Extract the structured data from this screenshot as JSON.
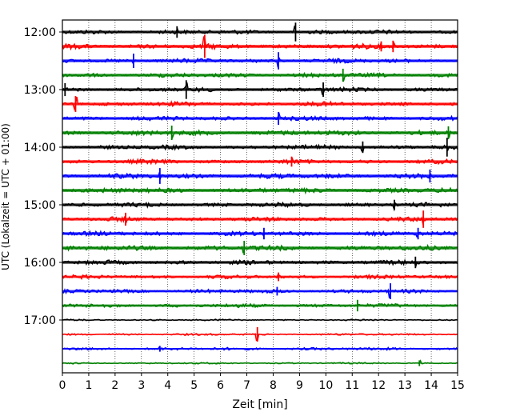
{
  "chart_data": {
    "type": "line",
    "title": "",
    "xlabel": "Zeit  [min]",
    "ylabel": "UTC (Lokalzeit = UTC + 01:00)",
    "xlim": [
      0,
      15
    ],
    "x_ticks": [
      0,
      1,
      2,
      3,
      4,
      5,
      6,
      7,
      8,
      9,
      10,
      11,
      12,
      13,
      14,
      15
    ],
    "y_ticks": [
      "12:00",
      "13:00",
      "14:00",
      "15:00",
      "16:00",
      "17:00"
    ],
    "grid": "vertical-dotted",
    "legend": "none",
    "colors": [
      "#000000",
      "#ff0000",
      "#0000ff",
      "#008000"
    ],
    "traces": [
      {
        "start": "12:00",
        "amplitude": 0.35,
        "spikes": [
          [
            4.35,
            0.8
          ],
          [
            8.85,
            1.3
          ]
        ]
      },
      {
        "start": "12:15",
        "amplitude": 0.4,
        "spikes": [
          [
            5.4,
            1.6
          ],
          [
            12.1,
            0.7
          ],
          [
            12.55,
            0.8
          ]
        ]
      },
      {
        "start": "12:30",
        "amplitude": 0.35,
        "spikes": [
          [
            2.7,
            1.0
          ],
          [
            8.2,
            1.2
          ]
        ]
      },
      {
        "start": "12:45",
        "amplitude": 0.35,
        "spikes": [
          [
            10.65,
            0.9
          ]
        ]
      },
      {
        "start": "13:00",
        "amplitude": 0.35,
        "spikes": [
          [
            0.1,
            0.9
          ],
          [
            4.7,
            1.3
          ],
          [
            9.9,
            1.0
          ]
        ]
      },
      {
        "start": "13:15",
        "amplitude": 0.35,
        "spikes": [
          [
            0.5,
            1.1
          ]
        ]
      },
      {
        "start": "13:30",
        "amplitude": 0.35,
        "spikes": [
          [
            8.2,
            0.9
          ]
        ]
      },
      {
        "start": "13:45",
        "amplitude": 0.4,
        "spikes": [
          [
            4.15,
            1.0
          ],
          [
            14.65,
            0.9
          ]
        ]
      },
      {
        "start": "14:00",
        "amplitude": 0.35,
        "spikes": [
          [
            11.4,
            0.8
          ],
          [
            14.6,
            1.3
          ]
        ]
      },
      {
        "start": "14:15",
        "amplitude": 0.35,
        "spikes": [
          [
            8.7,
            0.7
          ]
        ]
      },
      {
        "start": "14:30",
        "amplitude": 0.4,
        "spikes": [
          [
            3.7,
            1.1
          ],
          [
            13.95,
            0.9
          ]
        ]
      },
      {
        "start": "14:45",
        "amplitude": 0.4,
        "spikes": []
      },
      {
        "start": "15:00",
        "amplitude": 0.35,
        "spikes": [
          [
            12.6,
            0.7
          ]
        ]
      },
      {
        "start": "15:15",
        "amplitude": 0.35,
        "spikes": [
          [
            2.4,
            0.9
          ],
          [
            13.7,
            1.2
          ]
        ]
      },
      {
        "start": "15:30",
        "amplitude": 0.35,
        "spikes": [
          [
            7.65,
            0.8
          ],
          [
            13.5,
            0.8
          ]
        ]
      },
      {
        "start": "15:45",
        "amplitude": 0.4,
        "spikes": [
          [
            6.9,
            1.0
          ]
        ]
      },
      {
        "start": "16:00",
        "amplitude": 0.35,
        "spikes": [
          [
            13.4,
            0.8
          ]
        ]
      },
      {
        "start": "16:15",
        "amplitude": 0.3,
        "spikes": [
          [
            8.2,
            0.6
          ]
        ]
      },
      {
        "start": "16:30",
        "amplitude": 0.3,
        "spikes": [
          [
            12.45,
            1.1
          ],
          [
            8.15,
            0.6
          ]
        ]
      },
      {
        "start": "16:45",
        "amplitude": 0.3,
        "spikes": [
          [
            11.2,
            0.8
          ]
        ]
      },
      {
        "start": "17:00",
        "amplitude": 0.12,
        "spikes": []
      },
      {
        "start": "17:15",
        "amplitude": 0.15,
        "spikes": [
          [
            7.4,
            1.0
          ]
        ]
      },
      {
        "start": "17:30",
        "amplitude": 0.22,
        "spikes": [
          [
            3.7,
            0.4
          ]
        ]
      },
      {
        "start": "17:45",
        "amplitude": 0.12,
        "spikes": [
          [
            13.55,
            0.4
          ]
        ]
      }
    ]
  }
}
